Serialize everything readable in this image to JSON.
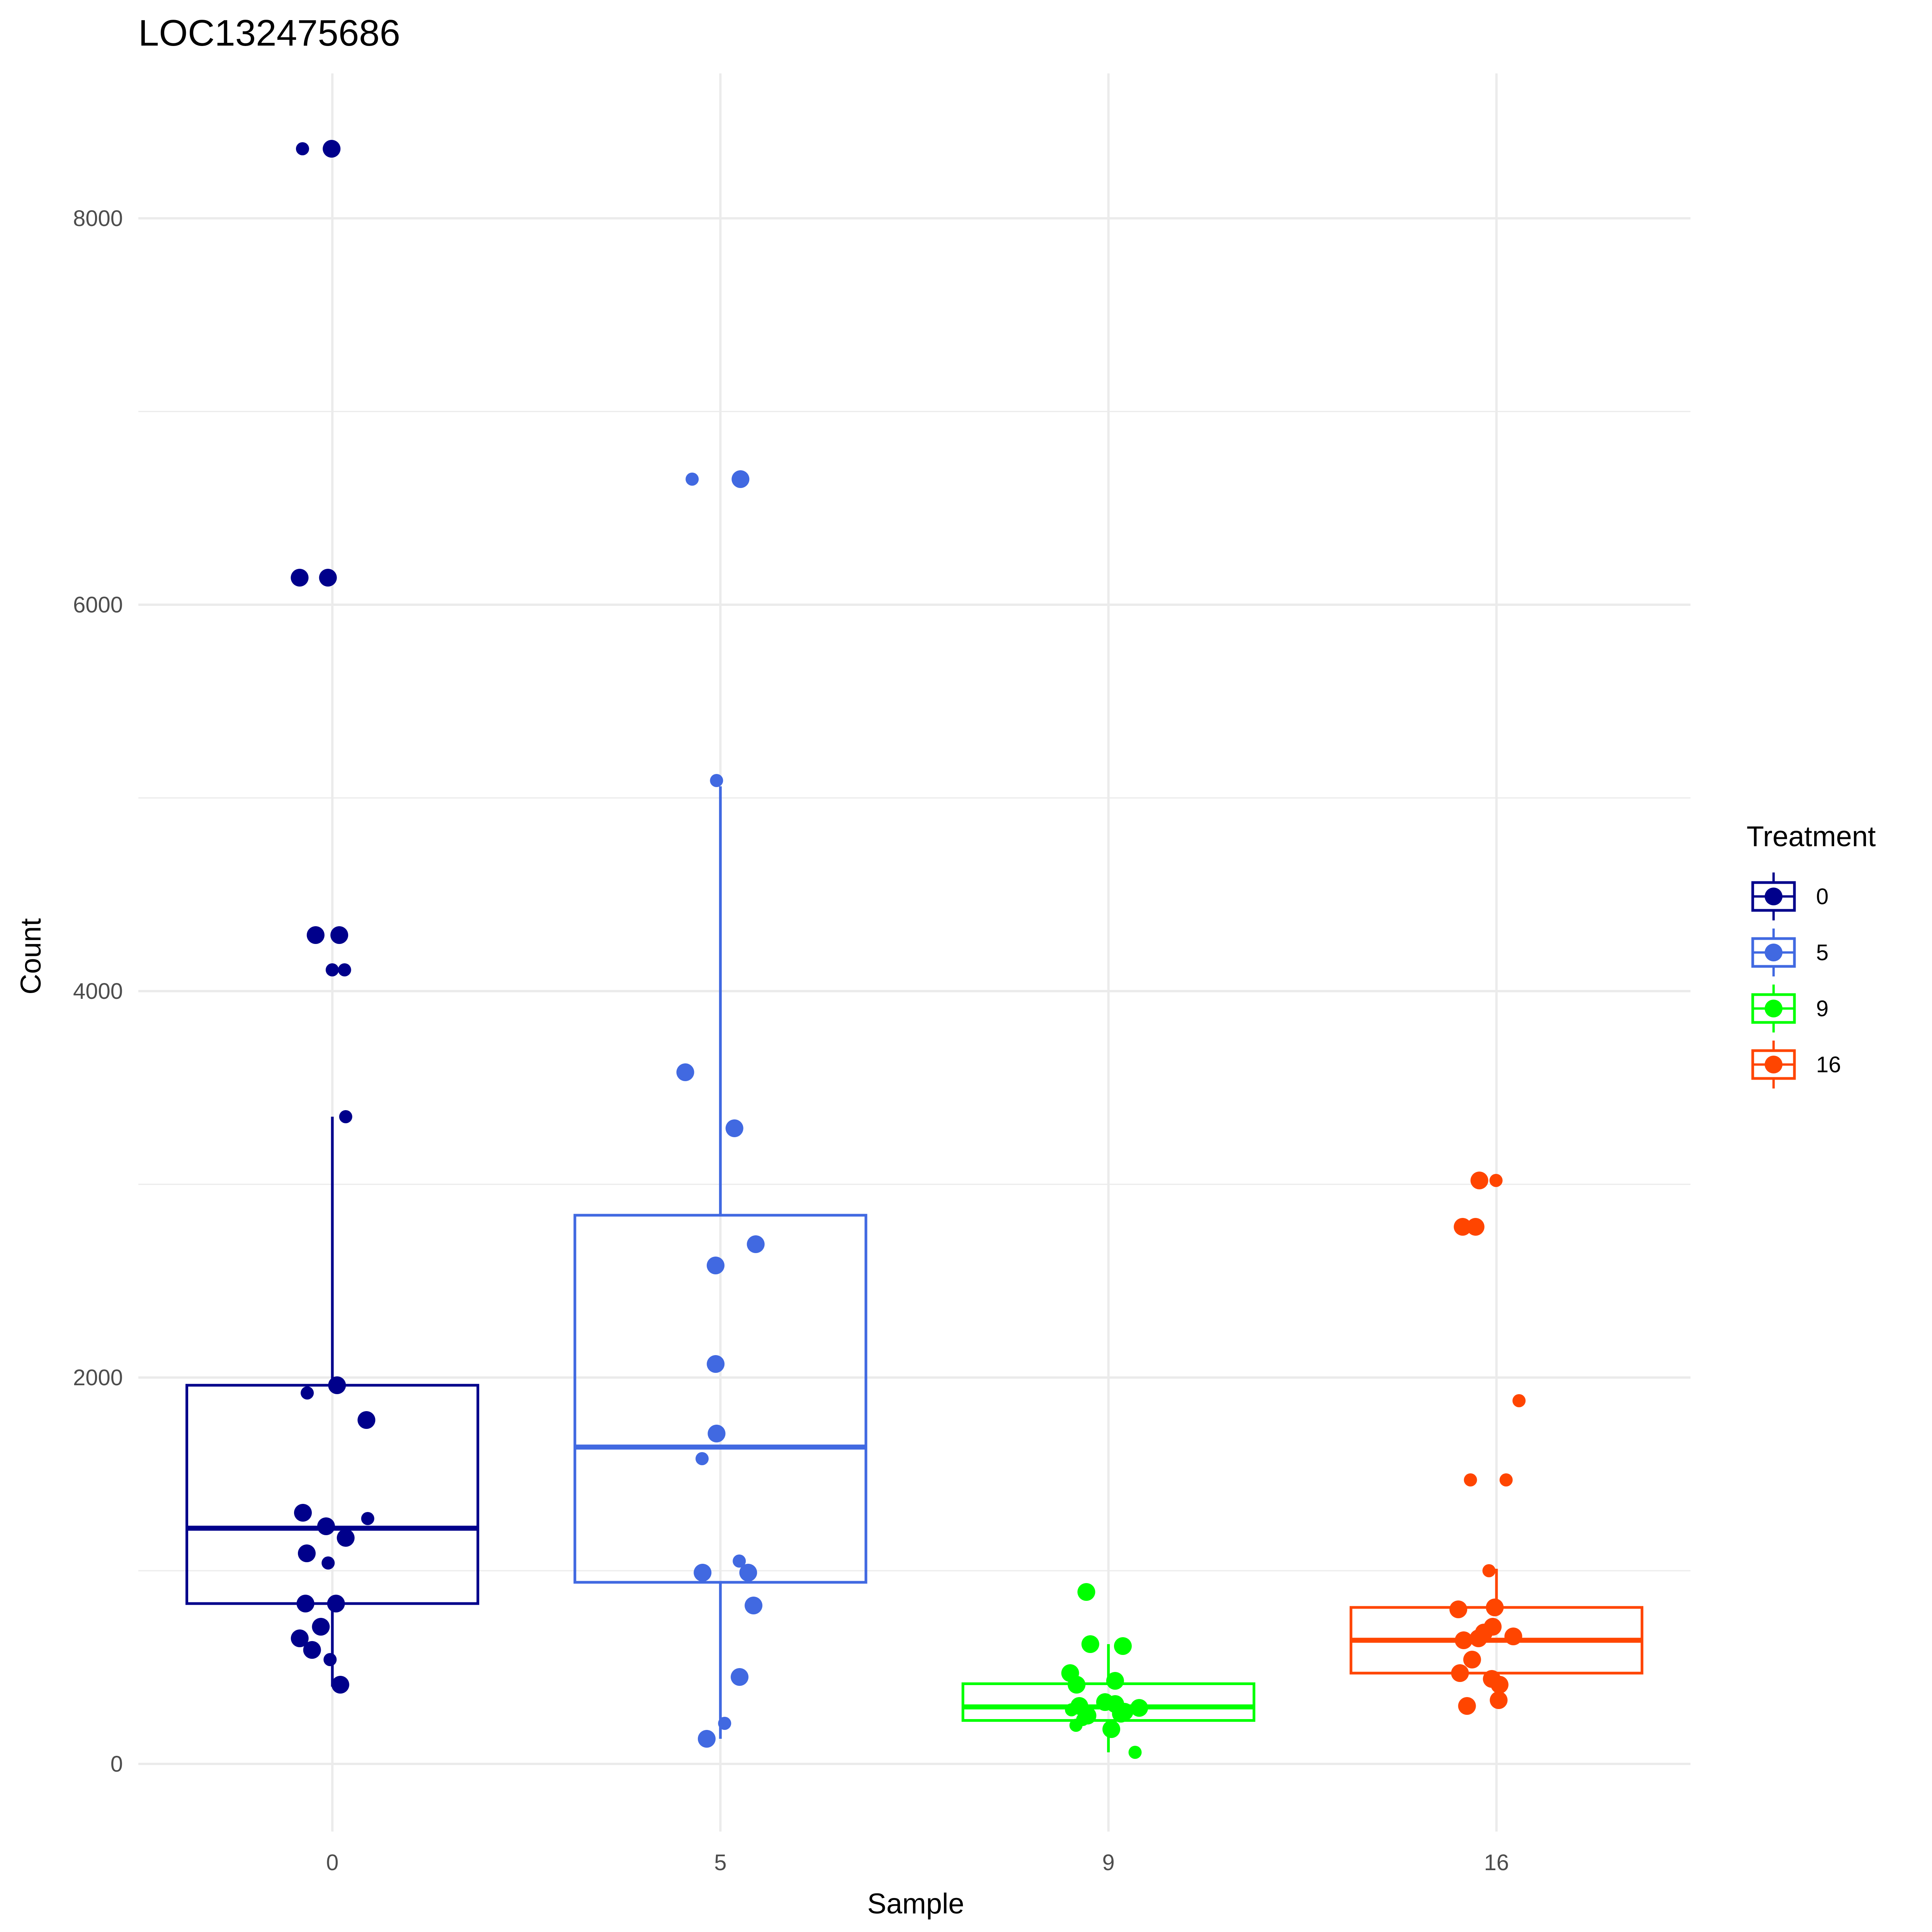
{
  "chart_data": {
    "type": "boxplot",
    "title": "LOC132475686",
    "xlabel": "Sample",
    "ylabel": "Count",
    "categories": [
      "0",
      "5",
      "9",
      "16"
    ],
    "yticks": [
      0,
      2000,
      4000,
      6000,
      8000
    ],
    "ylim": [
      -350,
      8750
    ],
    "grid": true,
    "legend": {
      "title": "Treatment",
      "position": "right",
      "entries": [
        "0",
        "5",
        "9",
        "16"
      ]
    },
    "colors": [
      "#00008B",
      "#4169E1",
      "#00FF00",
      "#FF4500"
    ],
    "boxes": [
      {
        "category": "0",
        "whisker_low": 400,
        "q1": 830,
        "median": 1220,
        "q3": 1960,
        "whisker_high": 3350
      },
      {
        "category": "5",
        "whisker_low": 130,
        "q1": 940,
        "median": 1640,
        "q3": 2840,
        "whisker_high": 5060
      },
      {
        "category": "9",
        "whisker_low": 60,
        "q1": 225,
        "median": 295,
        "q3": 415,
        "whisker_high": 620
      },
      {
        "category": "16",
        "whisker_low": 300,
        "q1": 470,
        "median": 640,
        "q3": 810,
        "whisker_high": 1010
      }
    ],
    "points": [
      {
        "category": "0",
        "values": [
          8360,
          8360,
          6140,
          6140,
          4290,
          4290,
          4110,
          4110,
          3350,
          1960,
          1920,
          1780,
          1300,
          1270,
          1230,
          1170,
          1090,
          1040,
          830,
          830,
          710,
          650,
          590,
          540,
          410
        ]
      },
      {
        "category": "5",
        "values": [
          6650,
          6650,
          5090,
          3580,
          3290,
          2690,
          2580,
          2070,
          1710,
          1580,
          1050,
          990,
          990,
          820,
          450,
          210,
          130
        ]
      },
      {
        "category": "9",
        "values": [
          890,
          610,
          620,
          470,
          430,
          410,
          320,
          310,
          300,
          290,
          280,
          270,
          260,
          250,
          230,
          200,
          180,
          60
        ]
      },
      {
        "category": "16",
        "values": [
          3020,
          3020,
          2780,
          2780,
          1880,
          1470,
          1470,
          1000,
          810,
          800,
          710,
          680,
          660,
          650,
          640,
          630,
          540,
          470,
          440,
          410,
          330,
          300
        ]
      }
    ]
  }
}
